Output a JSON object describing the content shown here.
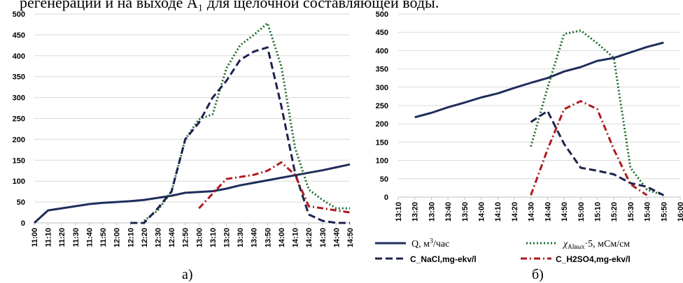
{
  "caption": "регенерации и на выходе А₁ для щелочной составляющей воды.",
  "colors": {
    "Q": "#1f2d5a",
    "chi": "#1e6b2a",
    "NaCl": "#1c2350",
    "H2SO4": "#b0191e",
    "grid": "#d9d9d9"
  },
  "chart_data": [
    {
      "type": "line",
      "id": "a",
      "subplot_label": "а)",
      "ylim": [
        0,
        500
      ],
      "yticks": [
        0,
        50,
        100,
        150,
        200,
        250,
        300,
        350,
        400,
        450,
        500
      ],
      "categories": [
        "11:00",
        "11:10",
        "11:20",
        "11:30",
        "11:40",
        "11:50",
        "12:00",
        "12:10",
        "12:20",
        "12:30",
        "12:40",
        "12:50",
        "13:00",
        "13:10",
        "13:20",
        "13:30",
        "13:40",
        "13:50",
        "14:00",
        "14:10",
        "14:20",
        "14:30",
        "14:40",
        "14:50"
      ],
      "grid": "horizontal",
      "series": [
        {
          "key": "Q",
          "style": "solid",
          "points": [
            [
              0,
              0
            ],
            [
              1,
              30
            ],
            [
              2,
              35
            ],
            [
              3,
              40
            ],
            [
              4,
              45
            ],
            [
              5,
              48
            ],
            [
              6,
              50
            ],
            [
              7,
              52
            ],
            [
              8,
              55
            ],
            [
              9,
              60
            ],
            [
              10,
              65
            ],
            [
              11,
              72
            ],
            [
              12,
              74
            ],
            [
              13,
              76
            ],
            [
              14,
              82
            ],
            [
              15,
              90
            ],
            [
              16,
              96
            ],
            [
              17,
              102
            ],
            [
              18,
              108
            ],
            [
              19,
              114
            ],
            [
              20,
              120
            ],
            [
              21,
              126
            ],
            [
              22,
              133
            ],
            [
              23,
              140
            ]
          ]
        },
        {
          "key": "chi",
          "style": "dotted",
          "points": [
            [
              8,
              5
            ],
            [
              9,
              30
            ],
            [
              10,
              75
            ],
            [
              11,
              200
            ],
            [
              12,
              248
            ],
            [
              13,
              260
            ],
            [
              14,
              370
            ],
            [
              15,
              425
            ],
            [
              16,
              450
            ],
            [
              17,
              478
            ],
            [
              18,
              375
            ],
            [
              19,
              180
            ],
            [
              20,
              80
            ],
            [
              21,
              55
            ],
            [
              22,
              35
            ],
            [
              23,
              35
            ]
          ]
        },
        {
          "key": "NaCl",
          "style": "dashed",
          "points": [
            [
              7,
              0
            ],
            [
              8,
              0
            ],
            [
              9,
              35
            ],
            [
              10,
              75
            ],
            [
              11,
              200
            ],
            [
              12,
              240
            ],
            [
              13,
              300
            ],
            [
              14,
              340
            ],
            [
              15,
              390
            ],
            [
              16,
              410
            ],
            [
              17,
              420
            ],
            [
              18,
              280
            ],
            [
              19,
              120
            ],
            [
              20,
              20
            ],
            [
              21,
              5
            ],
            [
              22,
              0
            ],
            [
              23,
              0
            ]
          ]
        },
        {
          "key": "H2SO4",
          "style": "dashdot",
          "points": [
            [
              12,
              35
            ],
            [
              13,
              70
            ],
            [
              14,
              105
            ],
            [
              15,
              110
            ],
            [
              16,
              115
            ],
            [
              17,
              125
            ],
            [
              18,
              145
            ],
            [
              19,
              115
            ],
            [
              20,
              40
            ],
            [
              21,
              35
            ],
            [
              22,
              30
            ],
            [
              23,
              25
            ]
          ]
        }
      ]
    },
    {
      "type": "line",
      "id": "b",
      "subplot_label": "б)",
      "ylim": [
        0,
        500
      ],
      "yticks": [
        0,
        50,
        100,
        150,
        200,
        250,
        300,
        350,
        400,
        450,
        500
      ],
      "categories": [
        "13:10",
        "13:20",
        "13:30",
        "13:40",
        "13:50",
        "14:00",
        "14:10",
        "14:20",
        "14:30",
        "14:40",
        "14:50",
        "15:00",
        "15:10",
        "15:20",
        "15:30",
        "15:40",
        "15:50",
        "16:00"
      ],
      "grid": "horizontal",
      "series": [
        {
          "key": "Q",
          "style": "solid",
          "points": [
            [
              1,
              218
            ],
            [
              2,
              230
            ],
            [
              3,
              245
            ],
            [
              4,
              258
            ],
            [
              5,
              272
            ],
            [
              6,
              283
            ],
            [
              7,
              298
            ],
            [
              8,
              312
            ],
            [
              9,
              325
            ],
            [
              10,
              343
            ],
            [
              11,
              355
            ],
            [
              12,
              372
            ],
            [
              13,
              380
            ],
            [
              14,
              395
            ],
            [
              15,
              410
            ],
            [
              16,
              422
            ]
          ]
        },
        {
          "key": "chi",
          "style": "dotted",
          "points": [
            [
              8,
              138
            ],
            [
              9,
              298
            ],
            [
              10,
              445
            ],
            [
              11,
              455
            ],
            [
              12,
              420
            ],
            [
              13,
              380
            ],
            [
              14,
              80
            ],
            [
              15,
              20
            ],
            [
              16,
              5
            ]
          ]
        },
        {
          "key": "NaCl",
          "style": "dashed",
          "points": [
            [
              8,
              205
            ],
            [
              9,
              235
            ],
            [
              10,
              145
            ],
            [
              11,
              80
            ],
            [
              12,
              72
            ],
            [
              13,
              62
            ],
            [
              14,
              38
            ],
            [
              15,
              28
            ],
            [
              16,
              5
            ]
          ]
        },
        {
          "key": "H2SO4",
          "style": "dashdot",
          "points": [
            [
              8,
              5
            ],
            [
              9,
              130
            ],
            [
              10,
              240
            ],
            [
              11,
              262
            ],
            [
              12,
              240
            ],
            [
              13,
              130
            ],
            [
              14,
              35
            ],
            [
              15,
              5
            ]
          ]
        }
      ]
    }
  ],
  "legend": {
    "Q": "Q, м³/час",
    "chi": "χAIвых·5, мСм/см",
    "NaCl": "C_NaCl,mg-ekv/l",
    "H2SO4": "C_H2SO4,mg-ekv/l"
  }
}
